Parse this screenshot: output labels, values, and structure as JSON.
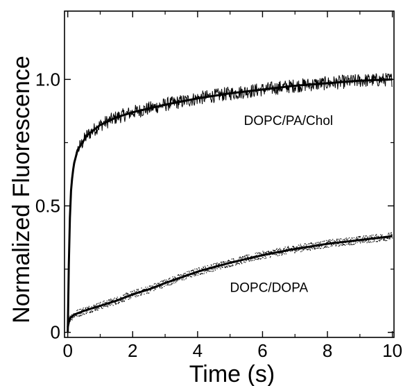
{
  "chart_data": {
    "type": "line",
    "title": "",
    "xlabel": "Time (s)",
    "ylabel": "Normalized Fluorescence",
    "xlim": [
      -0.1,
      10.05
    ],
    "ylim": [
      -0.02,
      1.27
    ],
    "x_ticks": [
      0,
      2,
      4,
      6,
      8,
      10
    ],
    "x_tick_labels": [
      "0",
      "2",
      "4",
      "6",
      "8",
      "10"
    ],
    "y_ticks": [
      0,
      0.5,
      1.0
    ],
    "y_tick_labels": [
      "0",
      "0.5",
      "1.0"
    ],
    "grid": false,
    "legend": "none",
    "annotations": [
      {
        "text": "DOPC/PA/Chol",
        "x": 6.8,
        "y": 0.82
      },
      {
        "text": "DOPC/DOPA",
        "x": 6.2,
        "y": 0.16
      }
    ],
    "series": [
      {
        "noise": "line",
        "color": "#000000",
        "x": [
          0,
          0.05,
          0.1,
          0.15,
          0.2,
          0.3,
          0.4,
          0.5,
          0.6,
          0.8,
          1.0,
          1.5,
          2.0,
          2.5,
          3.0,
          4.0,
          5.0,
          6.0,
          7.0,
          8.0,
          9.0,
          10.0
        ],
        "y": [
          0.0,
          0.4,
          0.56,
          0.63,
          0.67,
          0.72,
          0.74,
          0.76,
          0.78,
          0.8,
          0.82,
          0.85,
          0.87,
          0.885,
          0.9,
          0.925,
          0.945,
          0.96,
          0.975,
          0.985,
          0.995,
          1.0
        ]
      },
      {
        "noise": "dots",
        "color": "#000000",
        "x": [
          0,
          0.05,
          0.1,
          0.2,
          0.3,
          0.5,
          0.75,
          1.0,
          1.5,
          2.0,
          2.5,
          3.0,
          4.0,
          5.0,
          6.0,
          7.0,
          8.0,
          9.0,
          10.0
        ],
        "y": [
          0.02,
          0.05,
          0.06,
          0.07,
          0.075,
          0.085,
          0.095,
          0.105,
          0.125,
          0.15,
          0.17,
          0.195,
          0.24,
          0.275,
          0.305,
          0.33,
          0.35,
          0.365,
          0.38
        ]
      }
    ]
  }
}
